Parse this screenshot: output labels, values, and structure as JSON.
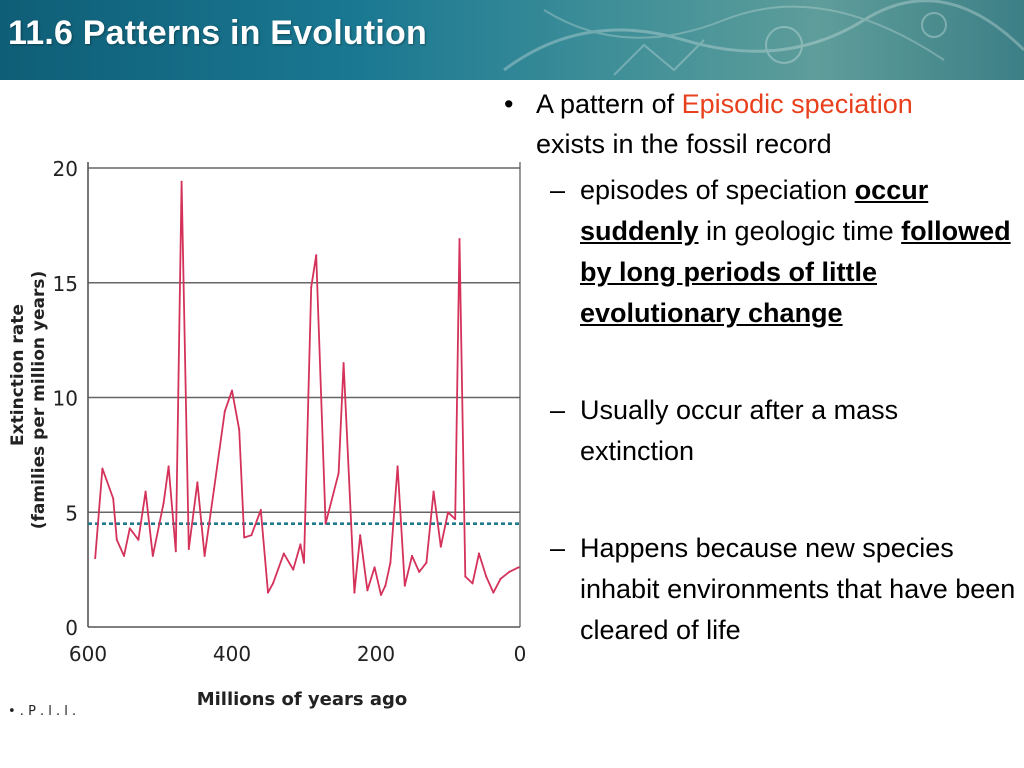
{
  "slide": {
    "title": "11.6 Patterns in Evolution"
  },
  "colors": {
    "header": "#1a7892",
    "line": "#d4325a",
    "dashed": "#1e7a8c",
    "accent": "#e8401c"
  },
  "bullets": {
    "main": {
      "pre": "A pattern of ",
      "accent": "Episodic speciation",
      "post": "exists in the fossil record"
    },
    "sub1": {
      "pre": "episodes of speciation ",
      "em1": "occur suddenly",
      "mid": " in geologic time ",
      "em2": "followed by long periods of little evolutionary change"
    },
    "sub2": "Usually occur after a mass extinction",
    "sub3": "Happens because new species inhabit environments that have been cleared of life"
  },
  "chart_data": {
    "type": "line",
    "title": "",
    "xlabel": "Millions of years ago",
    "ylabel": "Extinction rate",
    "ylabel2": "(families per million years)",
    "xlim": [
      600,
      0
    ],
    "ylim": [
      0,
      20
    ],
    "yticks": [
      0,
      5,
      10,
      15,
      20
    ],
    "xticks": [
      600,
      400,
      200,
      0
    ],
    "grid": "horizontal",
    "background_level": 4.5,
    "footer_fragment": "• . P . l . l .",
    "x": [
      590,
      580,
      565,
      560,
      550,
      542,
      530,
      520,
      510,
      495,
      488,
      478,
      470,
      460,
      448,
      438,
      425,
      410,
      400,
      390,
      383,
      373,
      360,
      350,
      343,
      328,
      315,
      305,
      300,
      290,
      283,
      270,
      252,
      245,
      230,
      222,
      212,
      202,
      193,
      187,
      180,
      170,
      160,
      150,
      140,
      130,
      120,
      110,
      100,
      90,
      84,
      76,
      66,
      57,
      47,
      37,
      27,
      15,
      2
    ],
    "values": [
      3,
      6.9,
      5.6,
      3.8,
      3.1,
      4.3,
      3.8,
      5.9,
      3.1,
      5.4,
      7,
      3.3,
      19.4,
      3.4,
      6.3,
      3.1,
      6,
      9.4,
      10.3,
      8.6,
      3.9,
      4,
      5.1,
      1.5,
      1.9,
      3.2,
      2.5,
      3.6,
      2.8,
      14.8,
      16.2,
      4.5,
      6.7,
      11.5,
      1.5,
      4,
      1.6,
      2.6,
      1.4,
      1.8,
      2.8,
      7,
      1.8,
      3.1,
      2.4,
      2.8,
      5.9,
      3.5,
      5,
      4.7,
      16.9,
      2.2,
      1.9,
      3.2,
      2.2,
      1.5,
      2.1,
      2.4,
      2.6
    ]
  }
}
